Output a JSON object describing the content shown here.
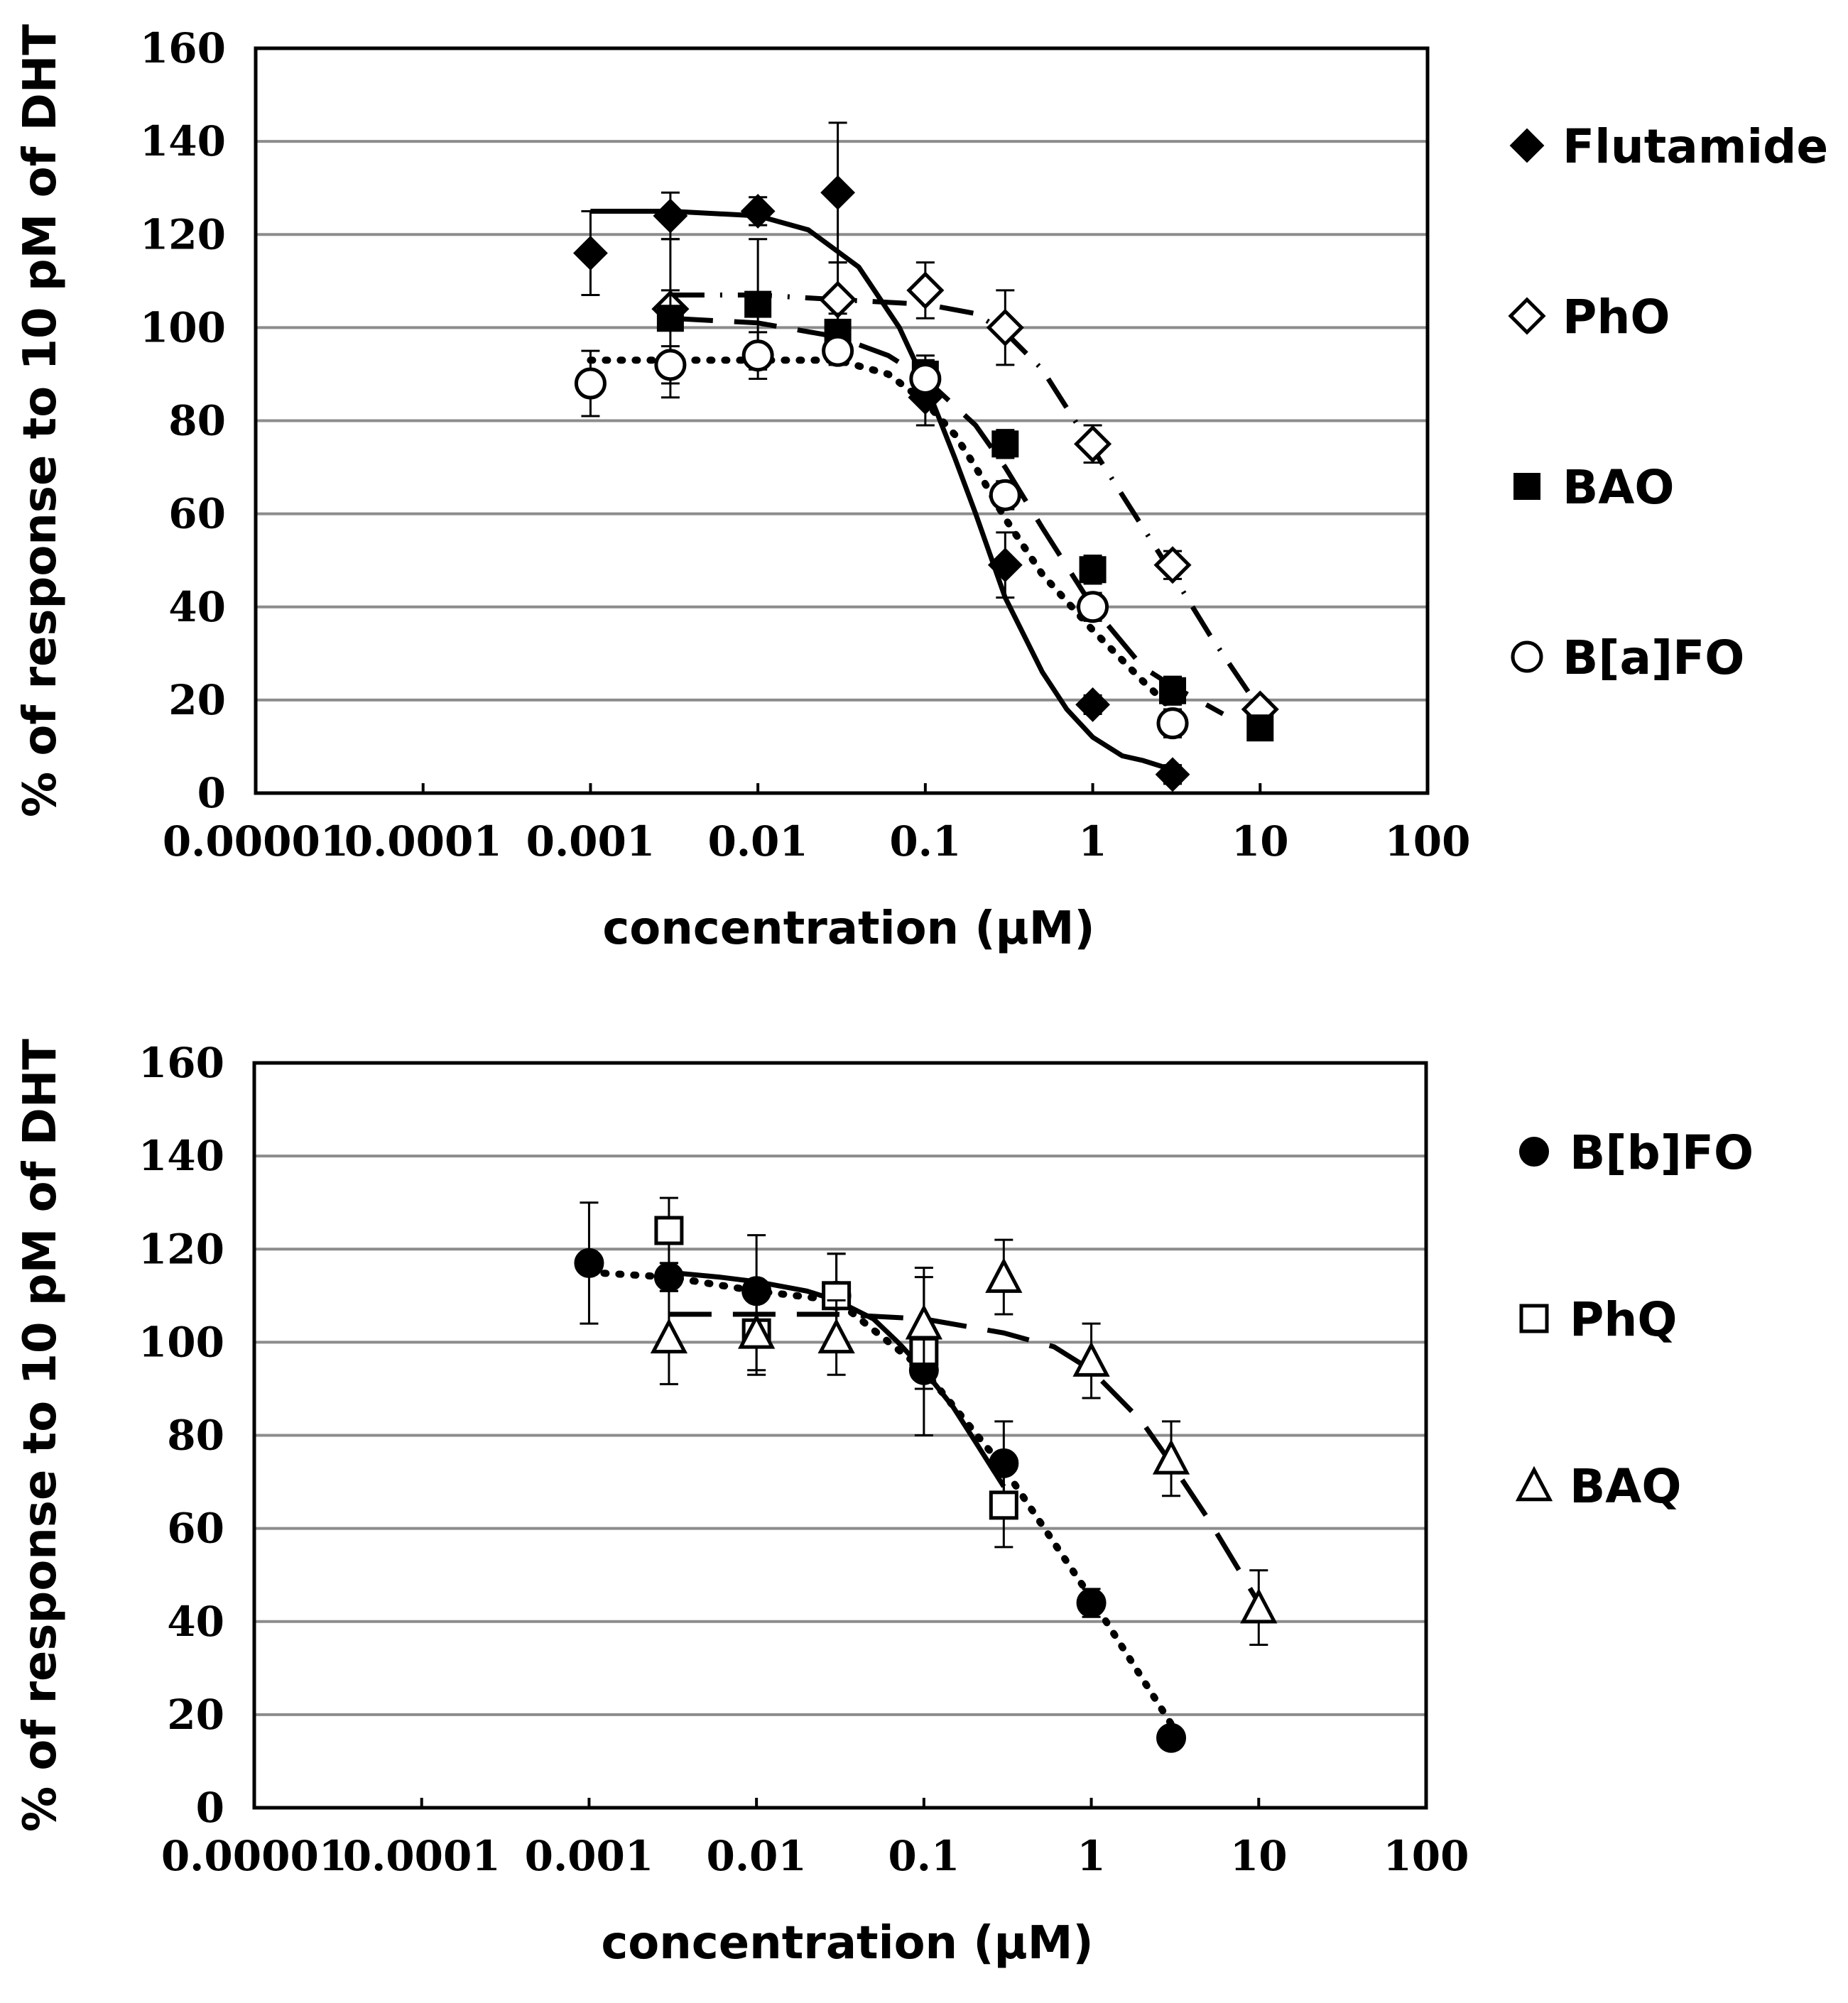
{
  "chart_data": [
    {
      "type": "scatter",
      "title": "",
      "xlabel": "concentration (μM)",
      "ylabel": "% of response to 10 pM of DHT",
      "xscale": "log",
      "xlim": [
        1e-05,
        100
      ],
      "ylim": [
        0,
        160
      ],
      "yticks": [
        0,
        20,
        40,
        60,
        80,
        100,
        120,
        140,
        160
      ],
      "xtick_labels": [
        "0.00001",
        "0.0001",
        "0.001",
        "0.01",
        "0.1",
        "1",
        "10",
        "100"
      ],
      "grid": true,
      "legend_position": "right",
      "series": [
        {
          "name": "Flutamide",
          "marker": "diamond-filled",
          "line": "solid",
          "x": [
            0.001,
            0.003,
            0.01,
            0.03,
            0.1,
            0.3,
            1,
            3
          ],
          "y": [
            116,
            124,
            125,
            129,
            85,
            49,
            19,
            4
          ],
          "err": [
            9,
            5,
            3,
            15,
            6,
            7,
            2,
            2
          ],
          "fit_x": [
            0.001,
            0.003,
            0.01,
            0.02,
            0.04,
            0.07,
            0.1,
            0.15,
            0.2,
            0.3,
            0.5,
            0.7,
            1,
            1.5,
            2,
            3
          ],
          "fit_y": [
            125,
            125,
            124,
            121,
            113,
            100,
            88,
            72,
            60,
            42,
            26,
            18,
            12,
            8,
            7,
            5
          ]
        },
        {
          "name": "PhO",
          "marker": "diamond-open",
          "line": "dash-dot",
          "x": [
            0.003,
            0.03,
            0.1,
            0.3,
            1,
            3,
            10
          ],
          "y": [
            104,
            106,
            108,
            100,
            75,
            49,
            18
          ],
          "err": [
            4,
            8,
            6,
            8,
            4,
            3,
            2
          ],
          "fit_x": [
            0.003,
            0.01,
            0.03,
            0.1,
            0.2,
            0.3,
            0.5,
            1,
            2,
            3,
            5,
            10
          ],
          "fit_y": [
            107,
            107,
            106,
            105,
            103,
            99,
            91,
            74,
            57,
            47,
            34,
            18
          ]
        },
        {
          "name": "BAO",
          "marker": "square-filled",
          "line": "dashed",
          "x": [
            0.003,
            0.01,
            0.03,
            0.1,
            0.3,
            1,
            3,
            10
          ],
          "y": [
            102,
            105,
            99,
            90,
            75,
            48,
            22,
            14
          ],
          "err": [
            17,
            14,
            4,
            4,
            3,
            3,
            3,
            2
          ],
          "fit_x": [
            0.003,
            0.01,
            0.03,
            0.06,
            0.1,
            0.2,
            0.3,
            0.5,
            1,
            2,
            3,
            6
          ],
          "fit_y": [
            102,
            101,
            98,
            94,
            89,
            79,
            70,
            57,
            40,
            27,
            23,
            17
          ]
        },
        {
          "name": "B[a]FO",
          "marker": "circle-open",
          "line": "dotted",
          "x": [
            0.001,
            0.003,
            0.01,
            0.03,
            0.1,
            0.3,
            1,
            3
          ],
          "y": [
            88,
            92,
            94,
            95,
            89,
            64,
            40,
            15
          ],
          "err": [
            7,
            4,
            5,
            3,
            4,
            3,
            3,
            3
          ],
          "fit_x": [
            0.001,
            0.003,
            0.01,
            0.03,
            0.06,
            0.1,
            0.15,
            0.2,
            0.3,
            0.5,
            1,
            2,
            3
          ],
          "fit_y": [
            93,
            93,
            93,
            93,
            90,
            84,
            77,
            70,
            59,
            47,
            35,
            24,
            18
          ]
        }
      ]
    },
    {
      "type": "scatter",
      "title": "",
      "xlabel": "concentration (μM)",
      "ylabel": "% of response to 10 pM of DHT",
      "xscale": "log",
      "xlim": [
        1e-05,
        100
      ],
      "ylim": [
        0,
        160
      ],
      "yticks": [
        0,
        20,
        40,
        60,
        80,
        100,
        120,
        140,
        160
      ],
      "xtick_labels": [
        "0.00001",
        "0.0001",
        "0.001",
        "0.01",
        "0.1",
        "1",
        "10",
        "100"
      ],
      "grid": true,
      "legend_position": "right",
      "series": [
        {
          "name": "B[b]FO",
          "marker": "circle-filled",
          "line": "dotted",
          "x": [
            0.001,
            0.003,
            0.01,
            0.03,
            0.1,
            0.3,
            1,
            3
          ],
          "y": [
            117,
            114,
            111,
            110,
            94,
            74,
            44,
            15
          ],
          "err": [
            13,
            3,
            12,
            9,
            4,
            9,
            3,
            1
          ],
          "fit_x": [
            0.001,
            0.003,
            0.01,
            0.03,
            0.1,
            0.3,
            1,
            3
          ],
          "fit_y": [
            115,
            114,
            111,
            109,
            94,
            73,
            45,
            18
          ]
        },
        {
          "name": "PhQ",
          "marker": "square-open",
          "line": "solid",
          "x": [
            0.003,
            0.01,
            0.03,
            0.1,
            0.3
          ],
          "y": [
            124,
            102,
            110,
            98,
            65
          ],
          "err": [
            7,
            9,
            9,
            18,
            9
          ],
          "fit_x": [
            0.003,
            0.006,
            0.01,
            0.02,
            0.03,
            0.05,
            0.07,
            0.1,
            0.15,
            0.2,
            0.3
          ],
          "fit_y": [
            115,
            114,
            113,
            111,
            109,
            105,
            100,
            94,
            86,
            79,
            69
          ]
        },
        {
          "name": "BAQ",
          "marker": "triangle-open",
          "line": "dashed",
          "x": [
            0.003,
            0.01,
            0.03,
            0.1,
            0.3,
            1,
            3,
            10
          ],
          "y": [
            101,
            102,
            101,
            104,
            114,
            96,
            75,
            43
          ],
          "err": [
            10,
            8,
            8,
            10,
            8,
            8,
            8,
            8
          ],
          "fit_x": [
            0.003,
            0.01,
            0.03,
            0.1,
            0.3,
            0.6,
            1,
            2,
            3,
            5,
            10
          ],
          "fit_y": [
            106,
            106,
            106,
            105,
            102,
            99,
            94,
            83,
            74,
            62,
            44
          ]
        }
      ]
    }
  ]
}
